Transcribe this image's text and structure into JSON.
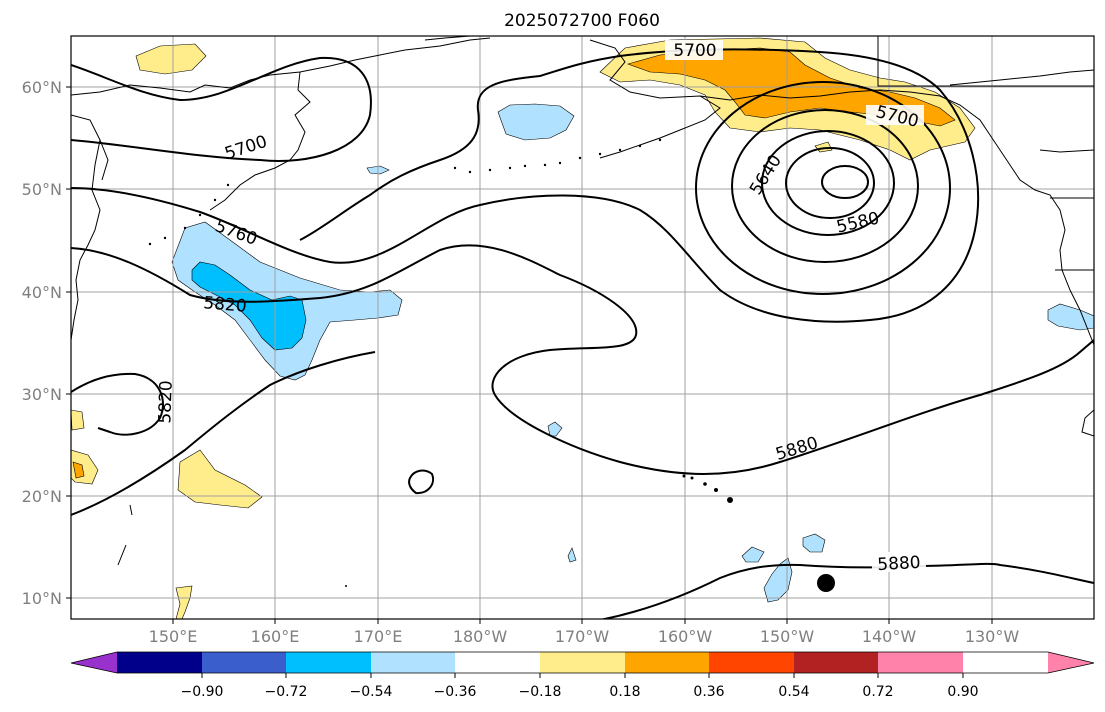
{
  "title": "2025072700 F060",
  "map": {
    "lon_labels": [
      "150°E",
      "160°E",
      "170°E",
      "180°W",
      "170°W",
      "160°W",
      "150°W",
      "140°W",
      "130°W"
    ],
    "lat_labels": [
      "10°N",
      "20°N",
      "30°N",
      "40°N",
      "50°N",
      "60°N"
    ],
    "contour_labels": [
      "5700",
      "5700",
      "5700",
      "5640",
      "5580",
      "5760",
      "5820",
      "5820",
      "5880",
      "5880"
    ],
    "marker": "storm-position-dot"
  },
  "colorbar": {
    "labels": [
      "−0.90",
      "−0.72",
      "−0.54",
      "−0.36",
      "−0.18",
      "0.18",
      "0.36",
      "0.54",
      "0.72",
      "0.90"
    ],
    "colors": [
      "#9932cc",
      "#00008b",
      "#3a5fcd",
      "#00bfff",
      "#b0e2ff",
      "#ffffff",
      "#ffec8b",
      "#ffa500",
      "#ff4500",
      "#b22222",
      "#ff82ab"
    ]
  }
}
